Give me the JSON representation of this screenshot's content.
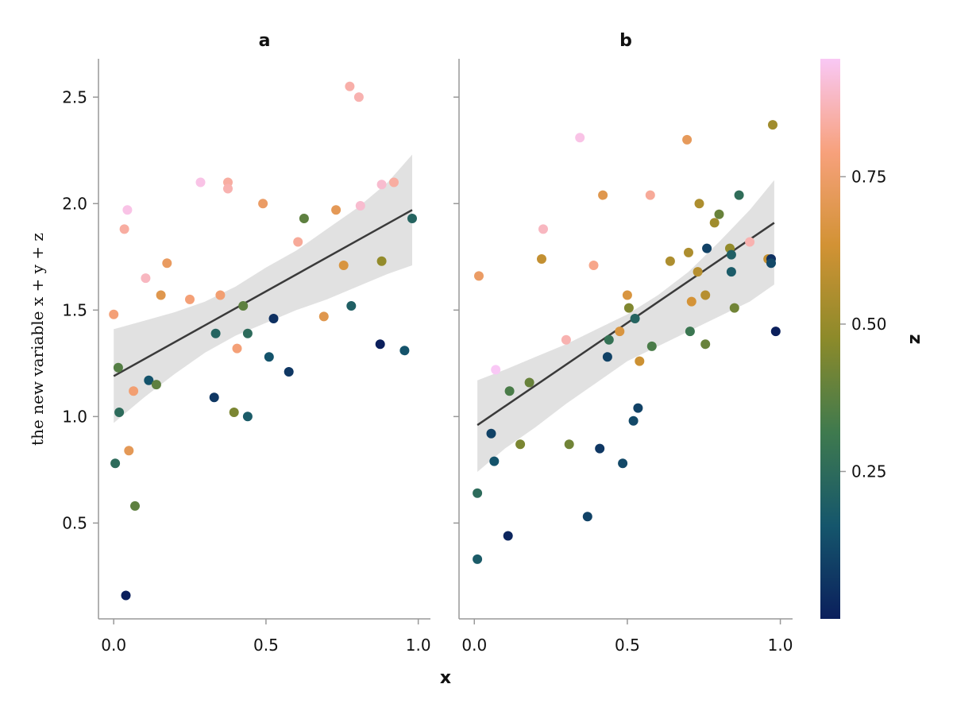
{
  "chart_data": {
    "type": "scatter",
    "ylabel": "the new variable x + y + z",
    "xlabel": "x",
    "ylim": [
      0.05,
      2.68
    ],
    "xlim": [
      -0.05,
      1.04
    ],
    "x_ticks": [
      0.0,
      0.5,
      1.0
    ],
    "x_tick_labels": [
      "0.0",
      "0.5",
      "1.0"
    ],
    "y_ticks": [
      0.5,
      1.0,
      1.5,
      2.0,
      2.5
    ],
    "y_tick_labels": [
      "0.5",
      "1.0",
      "1.5",
      "2.0",
      "2.5"
    ],
    "colorbar": {
      "label": "z",
      "range": [
        0.0,
        0.95
      ],
      "ticks": [
        0.25,
        0.5,
        0.75
      ],
      "tick_labels": [
        "0.25",
        "0.50",
        "0.75"
      ],
      "colormap": [
        "#0b1f5c",
        "#15566c",
        "#3f7a4e",
        "#8c8a2a",
        "#d29234",
        "#f7a17c",
        "#f9c8f5"
      ]
    },
    "panels": [
      {
        "title": "a",
        "fit": {
          "x": [
            0.0,
            0.98
          ],
          "y": [
            1.19,
            1.97
          ]
        },
        "band": {
          "x": [
            0.0,
            0.1,
            0.2,
            0.3,
            0.4,
            0.5,
            0.6,
            0.7,
            0.8,
            0.9,
            0.98
          ],
          "upper": [
            1.41,
            1.45,
            1.49,
            1.54,
            1.61,
            1.7,
            1.78,
            1.88,
            1.98,
            2.1,
            2.23
          ],
          "lower": [
            0.97,
            1.09,
            1.2,
            1.3,
            1.38,
            1.44,
            1.5,
            1.55,
            1.61,
            1.67,
            1.71
          ]
        },
        "points": {
          "x": [
            0.0,
            0.005,
            0.015,
            0.018,
            0.035,
            0.04,
            0.045,
            0.05,
            0.065,
            0.07,
            0.105,
            0.115,
            0.14,
            0.155,
            0.175,
            0.25,
            0.285,
            0.33,
            0.335,
            0.35,
            0.375,
            0.375,
            0.395,
            0.405,
            0.425,
            0.44,
            0.44,
            0.49,
            0.51,
            0.525,
            0.575,
            0.605,
            0.625,
            0.69,
            0.73,
            0.755,
            0.775,
            0.78,
            0.805,
            0.81,
            0.875,
            0.88,
            0.88,
            0.92,
            0.955,
            0.98
          ],
          "y": [
            1.48,
            0.78,
            1.23,
            1.02,
            1.88,
            0.16,
            1.97,
            0.84,
            1.12,
            0.58,
            1.65,
            1.17,
            1.15,
            1.57,
            1.72,
            1.55,
            2.1,
            1.09,
            1.39,
            1.57,
            2.1,
            2.07,
            1.02,
            1.32,
            1.52,
            1.39,
            1.0,
            2.0,
            1.28,
            1.46,
            1.21,
            1.82,
            1.93,
            1.47,
            1.97,
            1.71,
            2.55,
            1.52,
            2.5,
            1.99,
            1.34,
            2.09,
            1.73,
            2.1,
            1.31,
            1.93
          ],
          "z": [
            0.78,
            0.25,
            0.36,
            0.25,
            0.84,
            0.0,
            0.93,
            0.71,
            0.77,
            0.38,
            0.88,
            0.15,
            0.38,
            0.69,
            0.73,
            0.78,
            0.93,
            0.07,
            0.22,
            0.77,
            0.84,
            0.86,
            0.44,
            0.78,
            0.38,
            0.25,
            0.18,
            0.74,
            0.15,
            0.05,
            0.07,
            0.83,
            0.38,
            0.69,
            0.71,
            0.66,
            0.85,
            0.2,
            0.86,
            0.9,
            0.0,
            0.9,
            0.49,
            0.84,
            0.15,
            0.22
          ]
        }
      },
      {
        "title": "b",
        "fit": {
          "x": [
            0.01,
            0.98
          ],
          "y": [
            0.96,
            1.91
          ]
        },
        "band": {
          "x": [
            0.01,
            0.1,
            0.2,
            0.3,
            0.4,
            0.5,
            0.6,
            0.7,
            0.8,
            0.9,
            0.98
          ],
          "upper": [
            1.17,
            1.22,
            1.28,
            1.34,
            1.41,
            1.48,
            1.57,
            1.68,
            1.82,
            1.97,
            2.11
          ],
          "lower": [
            0.74,
            0.85,
            0.95,
            1.06,
            1.16,
            1.26,
            1.33,
            1.4,
            1.47,
            1.54,
            1.62
          ]
        },
        "points": {
          "x": [
            0.01,
            0.01,
            0.015,
            0.055,
            0.065,
            0.07,
            0.11,
            0.115,
            0.15,
            0.18,
            0.22,
            0.225,
            0.3,
            0.31,
            0.345,
            0.37,
            0.39,
            0.41,
            0.42,
            0.435,
            0.44,
            0.475,
            0.485,
            0.5,
            0.505,
            0.52,
            0.525,
            0.535,
            0.54,
            0.575,
            0.58,
            0.64,
            0.695,
            0.7,
            0.705,
            0.71,
            0.73,
            0.735,
            0.755,
            0.755,
            0.76,
            0.785,
            0.8,
            0.835,
            0.84,
            0.84,
            0.85,
            0.865,
            0.9,
            0.96,
            0.97,
            0.97,
            0.975,
            0.985
          ],
          "y": [
            0.33,
            0.64,
            1.66,
            0.92,
            0.79,
            1.22,
            0.44,
            1.12,
            0.87,
            1.16,
            1.74,
            1.88,
            1.36,
            0.87,
            2.31,
            0.53,
            1.71,
            0.85,
            2.04,
            1.28,
            1.36,
            1.4,
            0.78,
            1.57,
            1.51,
            0.98,
            1.46,
            1.04,
            1.26,
            2.04,
            1.33,
            1.73,
            2.3,
            1.77,
            1.4,
            1.54,
            1.68,
            2.0,
            1.57,
            1.34,
            1.79,
            1.91,
            1.95,
            1.79,
            1.76,
            1.68,
            1.51,
            2.04,
            1.82,
            1.74,
            1.74,
            1.72,
            2.37,
            1.4
          ],
          "z": [
            0.18,
            0.25,
            0.74,
            0.1,
            0.15,
            0.95,
            0.02,
            0.34,
            0.44,
            0.4,
            0.6,
            0.88,
            0.86,
            0.42,
            0.93,
            0.1,
            0.81,
            0.07,
            0.69,
            0.1,
            0.28,
            0.66,
            0.12,
            0.66,
            0.45,
            0.12,
            0.22,
            0.1,
            0.62,
            0.83,
            0.34,
            0.55,
            0.72,
            0.55,
            0.3,
            0.64,
            0.57,
            0.55,
            0.57,
            0.4,
            0.1,
            0.52,
            0.4,
            0.49,
            0.2,
            0.18,
            0.42,
            0.26,
            0.86,
            0.6,
            0.05,
            0.12,
            0.52,
            0.0
          ]
        }
      }
    ]
  }
}
